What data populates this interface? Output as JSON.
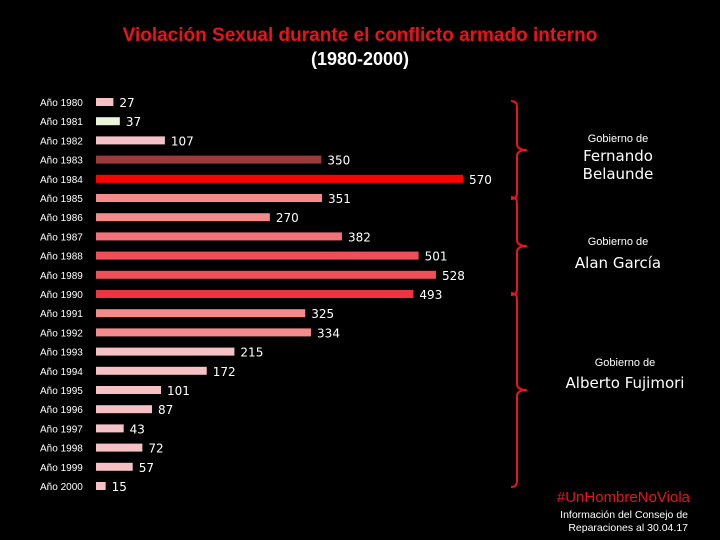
{
  "chart_data": {
    "type": "bar",
    "orientation": "horizontal",
    "title": "Violación Sexual durante el conflicto armado interno",
    "subtitle": "(1980-2000)",
    "categories": [
      "Año 1980",
      "Año 1981",
      "Año 1982",
      "Año 1983",
      "Año 1984",
      "Año 1985",
      "Año 1986",
      "Año 1987",
      "Año 1988",
      "Año 1989",
      "Año 1990",
      "Año 1991",
      "Año 1992",
      "Año 1993",
      "Año 1994",
      "Año 1995",
      "Año 1996",
      "Año 1997",
      "Año 1998",
      "Año 1999",
      "Año 2000"
    ],
    "values": [
      27,
      37,
      107,
      350,
      570,
      351,
      270,
      382,
      501,
      528,
      493,
      325,
      334,
      215,
      172,
      101,
      87,
      43,
      72,
      57,
      15
    ],
    "colors": [
      "#f6c1c4",
      "#eaf5dc",
      "#f6c1c4",
      "#9b3a3b",
      "#ff0000",
      "#f58a8d",
      "#f58a8d",
      "#f47277",
      "#ef4f58",
      "#ef4f58",
      "#eb3543",
      "#f58a8d",
      "#f58a8d",
      "#f6c1c4",
      "#f6c1c4",
      "#f6c1c4",
      "#f6c1c4",
      "#f6c1c4",
      "#f6c1c4",
      "#f6c1c4",
      "#f6c1c4"
    ],
    "xlim": [
      0,
      570
    ],
    "grid": false,
    "legend": "none",
    "groups": [
      {
        "prefix": "Gobierno de",
        "name": "Fernando Belaunde",
        "start_index": 0,
        "end_index": 5
      },
      {
        "prefix": "Gobierno de",
        "name": "Alan García",
        "start_index": 5,
        "end_index": 10
      },
      {
        "prefix": "Gobierno de",
        "name": "Alberto Fujimori",
        "start_index": 10,
        "end_index": 20
      }
    ],
    "bracket_color": "#e8141a"
  },
  "footer": {
    "hashtag": "#UnHombreNoViola",
    "source_line1": "Información del Consejo de",
    "source_line2": "Reparaciones al 30.04.17"
  }
}
